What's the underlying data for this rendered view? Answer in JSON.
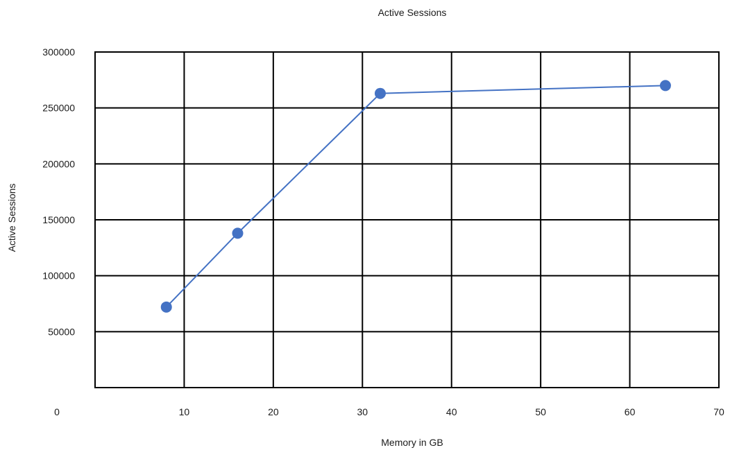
{
  "chart_data": {
    "type": "scatter",
    "title": "Active Sessions",
    "xlabel": "Memory in GB",
    "ylabel": "Active Sessions",
    "xlim": [
      0,
      70
    ],
    "ylim": [
      0,
      300000
    ],
    "x_ticks": [
      10,
      20,
      30,
      40,
      50,
      60,
      70
    ],
    "y_ticks": [
      50000,
      100000,
      150000,
      200000,
      250000,
      300000
    ],
    "origin_label": "0",
    "grid": true,
    "legend": "none",
    "series": [
      {
        "x": [
          8,
          16,
          32,
          64
        ],
        "y": [
          72000,
          138000,
          263000,
          270000
        ],
        "mode": "lines+markers",
        "color": "#4472C4"
      }
    ]
  }
}
